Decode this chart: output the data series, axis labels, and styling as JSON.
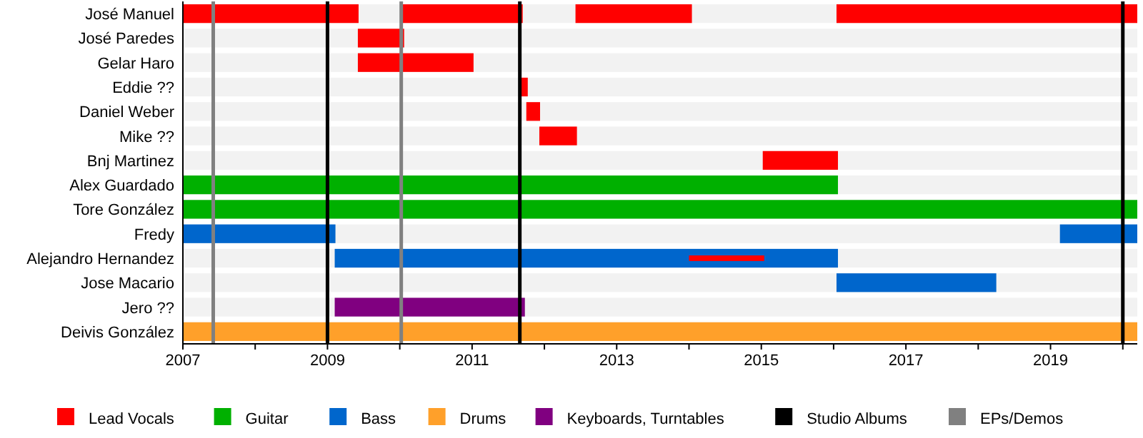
{
  "chart_data": {
    "type": "bar",
    "orientation": "horizontal",
    "categories": [
      "José Manuel",
      "José Paredes",
      "Gelar Haro",
      "Eddie ??",
      "Daniel Weber",
      "Mike ??",
      "Bnj Martinez",
      "Alex Guardado",
      "Tore González",
      "Fredy",
      "Alejandro Hernandez",
      "Jose Macario",
      "Jero ??",
      "Deivis González"
    ],
    "series": [
      {
        "name": "Lead Vocals",
        "color": "#ff0000",
        "base": [
          2007,
          2009.42,
          2009.42,
          2011.66,
          2011.75,
          2011.93,
          2015.02,
          null,
          null,
          null,
          2014.0,
          null,
          null,
          null
        ],
        "values": [
          2.43,
          0.64,
          1.6,
          0.11,
          0.19,
          0.52,
          1.04,
          null,
          null,
          null,
          1.04,
          null,
          null,
          null
        ]
      },
      {
        "color": "#ff0000",
        "base": [
          2010.04,
          null,
          null,
          null,
          null,
          null,
          null,
          null,
          null,
          null,
          null,
          null,
          null,
          null
        ],
        "values": [
          1.66,
          null,
          null,
          null,
          null,
          null,
          null,
          null,
          null,
          null,
          null,
          null,
          null,
          null
        ]
      },
      {
        "color": "#ff0000",
        "base": [
          2012.43,
          null,
          null,
          null,
          null,
          null,
          null,
          null,
          null,
          null,
          null,
          null,
          null,
          null
        ],
        "values": [
          1.61,
          null,
          null,
          null,
          null,
          null,
          null,
          null,
          null,
          null,
          null,
          null,
          null,
          null
        ]
      },
      {
        "color": "#ff0000",
        "base": [
          2016.04,
          null,
          null,
          null,
          null,
          null,
          null,
          null,
          null,
          null,
          null,
          null,
          null,
          null
        ],
        "values": [
          4.16,
          null,
          null,
          null,
          null,
          null,
          null,
          null,
          null,
          null,
          null,
          null,
          null,
          null
        ]
      },
      {
        "name": "Guitar",
        "color": "#00b000",
        "base": [
          null,
          null,
          null,
          null,
          null,
          null,
          null,
          2007,
          2007,
          null,
          null,
          null,
          null,
          null
        ],
        "values": [
          null,
          null,
          null,
          null,
          null,
          null,
          null,
          9.06,
          13.2,
          null,
          null,
          null,
          null,
          null
        ]
      },
      {
        "name": "Bass",
        "color": "#0066cc",
        "base": [
          null,
          null,
          null,
          null,
          null,
          null,
          null,
          null,
          null,
          2007,
          2009.1,
          2016.04,
          null,
          null
        ],
        "values": [
          null,
          null,
          null,
          null,
          null,
          null,
          null,
          null,
          null,
          2.11,
          6.96,
          2.21,
          null,
          null
        ]
      },
      {
        "color": "#0066cc",
        "base": [
          null,
          null,
          null,
          null,
          null,
          null,
          null,
          null,
          null,
          2019.13,
          null,
          null,
          null,
          null
        ],
        "values": [
          null,
          null,
          null,
          null,
          null,
          null,
          null,
          null,
          null,
          1.07,
          null,
          null,
          null,
          null
        ]
      },
      {
        "name": "Drums",
        "color": "#ffa02a",
        "base": [
          null,
          null,
          null,
          null,
          null,
          null,
          null,
          null,
          null,
          null,
          null,
          null,
          null,
          2007
        ],
        "values": [
          null,
          null,
          null,
          null,
          null,
          null,
          null,
          null,
          null,
          null,
          null,
          null,
          null,
          13.2
        ]
      },
      {
        "name": "Keyboards, Turntables",
        "color": "#800080",
        "base": [
          null,
          null,
          null,
          null,
          null,
          null,
          null,
          null,
          null,
          null,
          null,
          null,
          2009.1,
          null
        ],
        "values": [
          null,
          null,
          null,
          null,
          null,
          null,
          null,
          null,
          null,
          null,
          null,
          null,
          2.63,
          null
        ]
      }
    ],
    "ref_lines": [
      {
        "axis": "x",
        "value": 2009.0,
        "label": "Studio Albums",
        "color": "#000000"
      },
      {
        "axis": "x",
        "value": 2011.66,
        "label": null,
        "color": "#000000"
      },
      {
        "axis": "x",
        "value": 2020.0,
        "label": null,
        "color": "#000000"
      },
      {
        "axis": "x",
        "value": 2007.42,
        "label": "EPs/Demos",
        "color": "#808080"
      },
      {
        "axis": "x",
        "value": 2010.02,
        "label": null,
        "color": "#808080"
      }
    ],
    "xlim": [
      2007,
      2020.2
    ],
    "xticks": [
      2007,
      {
        "value": 2008,
        "label": null
      },
      2009,
      {
        "value": 2010,
        "label": null
      },
      2011,
      {
        "value": 2012,
        "label": null
      },
      2013,
      {
        "value": 2014,
        "label": null
      },
      2015,
      {
        "value": 2016,
        "label": null
      },
      2017,
      {
        "value": 2018,
        "label": null
      },
      2019,
      {
        "value": 2020,
        "label": null
      }
    ],
    "legend": "bottom"
  }
}
